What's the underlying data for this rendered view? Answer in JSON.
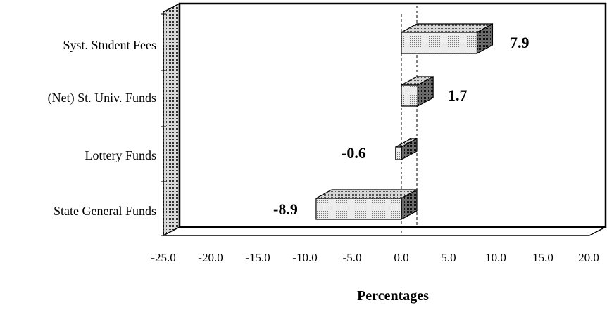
{
  "chart_data": {
    "type": "bar",
    "orientation": "horizontal",
    "style": "3d",
    "categories": [
      "Syst. Student Fees",
      "(Net) St. Univ. Funds",
      "Lottery Funds",
      "State General Funds"
    ],
    "values": [
      7.9,
      1.7,
      -0.6,
      -8.9
    ],
    "data_labels": [
      "7.9",
      "1.7",
      "-0.6",
      "-8.9"
    ],
    "xlabel": "Percentages",
    "ylabel": "",
    "xlim": [
      -25.0,
      20.0
    ],
    "xticks": [
      -25,
      -20,
      -15,
      -10,
      -5,
      0,
      5,
      10,
      15,
      20
    ],
    "xtick_labels": [
      "-25.0",
      "-20.0",
      "-15.0",
      "-10.0",
      "-5.0",
      "0.0",
      "5.0",
      "10.0",
      "15.0",
      "20.0"
    ],
    "grid": false,
    "legend": "none"
  }
}
